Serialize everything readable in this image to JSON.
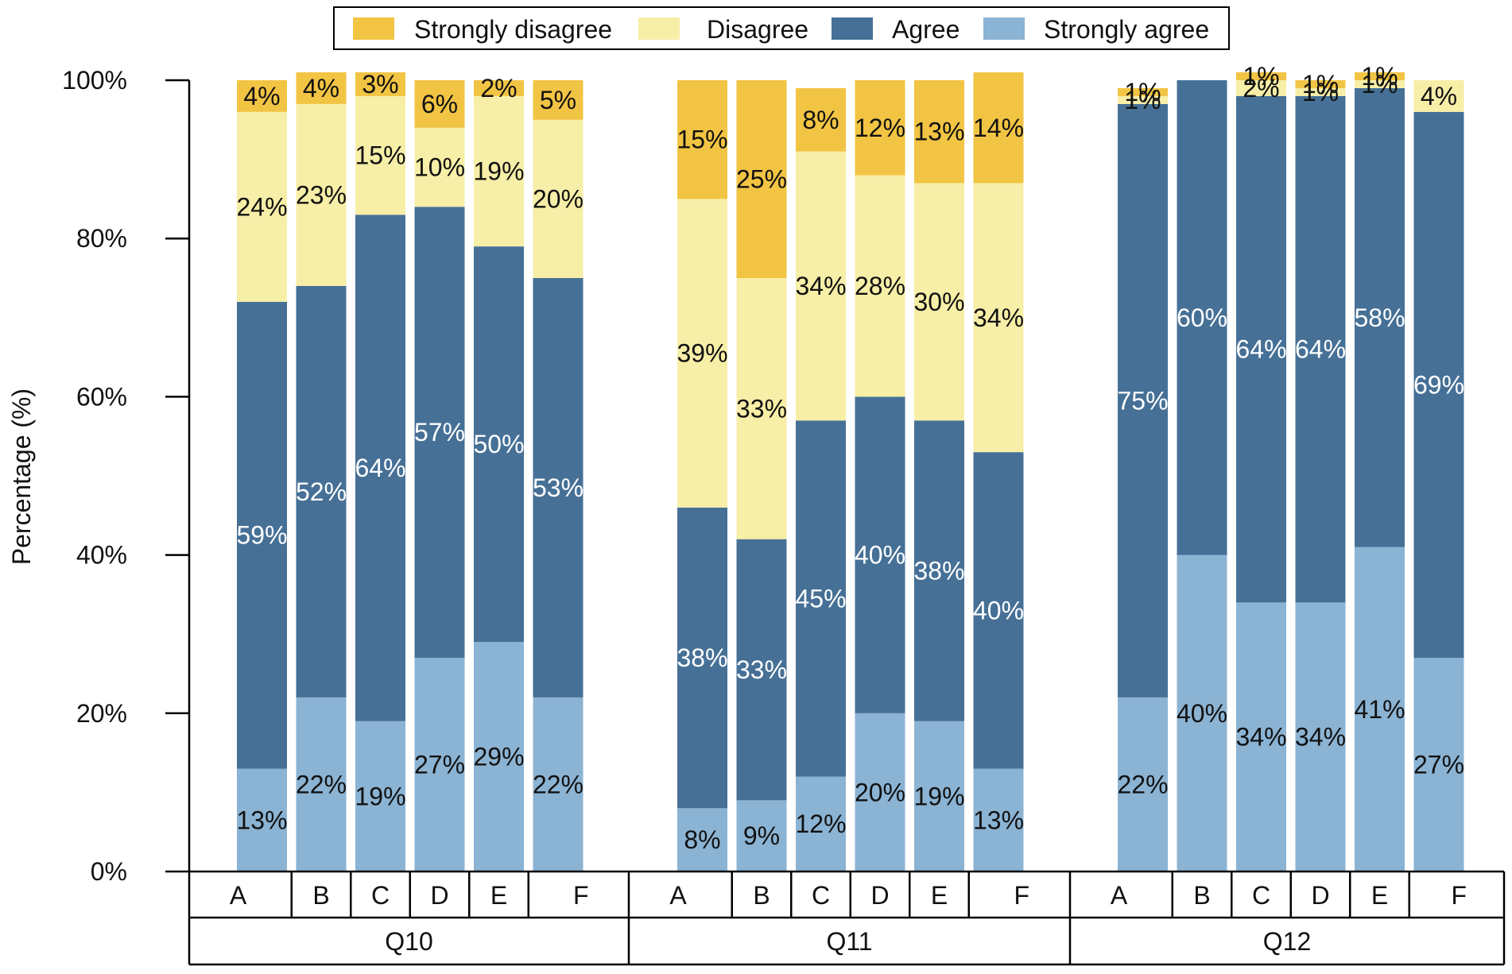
{
  "chart_data": {
    "type": "bar",
    "stacked": true,
    "ylabel": "Percentage (%)",
    "ylim": [
      0,
      100
    ],
    "y_ticks": [
      "0%",
      "20%",
      "40%",
      "60%",
      "80%",
      "100%"
    ],
    "legend_position": "top-center",
    "groups": [
      {
        "name": "Q10",
        "categories": [
          "A",
          "B",
          "C",
          "D",
          "E",
          "F"
        ],
        "series": [
          {
            "name": "Strongly agree",
            "values": [
              13,
              22,
              19,
              27,
              29,
              22
            ]
          },
          {
            "name": "Agree",
            "values": [
              59,
              52,
              64,
              57,
              50,
              53
            ]
          },
          {
            "name": "Disagree",
            "values": [
              24,
              23,
              15,
              10,
              19,
              20
            ]
          },
          {
            "name": "Strongly disagree",
            "values": [
              4,
              4,
              3,
              6,
              2,
              5
            ]
          }
        ]
      },
      {
        "name": "Q11",
        "categories": [
          "A",
          "B",
          "C",
          "D",
          "E",
          "F"
        ],
        "series": [
          {
            "name": "Strongly agree",
            "values": [
              8,
              9,
              12,
              20,
              19,
              13
            ]
          },
          {
            "name": "Agree",
            "values": [
              38,
              33,
              45,
              40,
              38,
              40
            ]
          },
          {
            "name": "Disagree",
            "values": [
              39,
              33,
              34,
              28,
              30,
              34
            ]
          },
          {
            "name": "Strongly disagree",
            "values": [
              15,
              25,
              8,
              12,
              13,
              14
            ]
          }
        ]
      },
      {
        "name": "Q12",
        "categories": [
          "A",
          "B",
          "C",
          "D",
          "E",
          "F"
        ],
        "series": [
          {
            "name": "Strongly agree",
            "values": [
              22,
              40,
              34,
              34,
              41,
              27
            ]
          },
          {
            "name": "Agree",
            "values": [
              75,
              60,
              64,
              64,
              58,
              69
            ]
          },
          {
            "name": "Disagree",
            "values": [
              1,
              0,
              2,
              1,
              1,
              4
            ]
          },
          {
            "name": "Strongly disagree",
            "values": [
              1,
              0,
              1,
              1,
              1,
              0
            ]
          }
        ]
      }
    ]
  },
  "legend": [
    {
      "name": "Strongly disagree",
      "color": "#F2C443"
    },
    {
      "name": "Disagree",
      "color": "#F7EEA7"
    },
    {
      "name": "Agree",
      "color": "#467096"
    },
    {
      "name": "Strongly agree",
      "color": "#8BB3D3"
    }
  ],
  "label_colors": {
    "Strongly disagree": "#111111",
    "Disagree": "#111111",
    "Agree": "#ffffff",
    "Strongly agree": "#111111"
  }
}
